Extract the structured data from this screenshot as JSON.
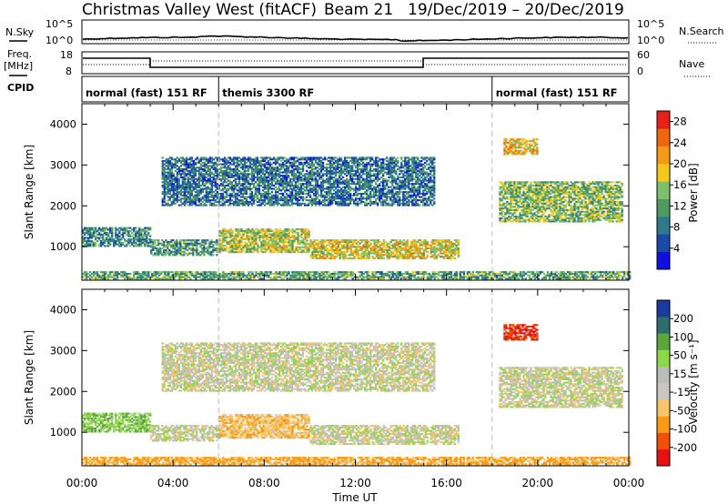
{
  "header": {
    "title": "Christmas Valley West (fitACF)",
    "beam": "Beam 21",
    "dates": "19/Dec/2019 – 20/Dec/2019"
  },
  "top_panels": {
    "nsky_label": "N.Sky",
    "nsky_ticks": [
      "10^5",
      "10^0"
    ],
    "nsearch_label": "N.Search",
    "nsearch_ticks": [
      "10^5",
      "10^0"
    ],
    "freq_label_1": "Freq.",
    "freq_label_2": "[MHz]",
    "freq_ticks": [
      "18",
      "8"
    ],
    "nave_label": "Nave",
    "nave_ticks": [
      "60",
      "0"
    ],
    "cpid_label": "CPID"
  },
  "cpid_segments": [
    {
      "label": "normal (fast) 151 RF",
      "start_h": 0,
      "end_h": 6
    },
    {
      "label": "themis 3300 RF",
      "start_h": 6,
      "end_h": 18
    },
    {
      "label": "normal (fast) 151 RF",
      "start_h": 18,
      "end_h": 24
    }
  ],
  "colors": {
    "power_scale": [
      "#1010e0",
      "#1a4aa8",
      "#2e7a8c",
      "#4f9a5e",
      "#7cc06c",
      "#f2c81a",
      "#f59a12",
      "#ee6a10",
      "#e8201a"
    ],
    "velocity_scale": [
      "#e81010",
      "#f05008",
      "#f89a14",
      "#f6c46a",
      "#c8c8c0",
      "#bcbcbc",
      "#8ed64a",
      "#5aa83c",
      "#2e6e6e",
      "#1c3aa0"
    ]
  },
  "chart_data": [
    {
      "type": "heatmap",
      "title": "Power",
      "ylabel": "Slant Range [km]",
      "xlabel": "Time UT",
      "x_ticks": [
        "00:00",
        "04:00",
        "08:00",
        "12:00",
        "16:00",
        "20:00",
        "00:00"
      ],
      "xlim_hours": [
        0,
        24
      ],
      "ylim": [
        180,
        4500
      ],
      "y_ticks": [
        1000,
        2000,
        3000,
        4000
      ],
      "colorbar": {
        "label": "Power [dB]",
        "ticks": [
          4,
          8,
          12,
          16,
          20,
          24,
          28
        ],
        "range": [
          0,
          30
        ]
      },
      "regions": [
        {
          "t0": 0,
          "t1": 3.0,
          "r0": 1000,
          "r1": 1480,
          "value": 10
        },
        {
          "t0": 3.0,
          "t1": 6.0,
          "r0": 780,
          "r1": 1180,
          "value": 11
        },
        {
          "t0": 6.0,
          "t1": 10.0,
          "r0": 850,
          "r1": 1450,
          "value": 16
        },
        {
          "t0": 10.0,
          "t1": 16.5,
          "r0": 700,
          "r1": 1150,
          "value": 18
        },
        {
          "t0": 18.5,
          "t1": 20.0,
          "r0": 3250,
          "r1": 3650,
          "value": 20
        },
        {
          "t0": 18.3,
          "t1": 23.7,
          "r0": 1600,
          "r1": 2600,
          "value": 14
        },
        {
          "t0": 3.5,
          "t1": 15.5,
          "r0": 2000,
          "r1": 3200,
          "value": 8
        },
        {
          "t0": 0,
          "t1": 24,
          "r0": 200,
          "r1": 400,
          "value": 12
        }
      ]
    },
    {
      "type": "heatmap",
      "title": "Velocity",
      "ylabel": "Slant Range [km]",
      "xlabel": "Time UT",
      "x_ticks": [
        "00:00",
        "04:00",
        "08:00",
        "12:00",
        "16:00",
        "20:00",
        "00:00"
      ],
      "xlim_hours": [
        0,
        24
      ],
      "ylim": [
        180,
        4500
      ],
      "y_ticks": [
        1000,
        2000,
        3000,
        4000
      ],
      "colorbar": {
        "label": "Velocity [m s⁻¹]",
        "ticks": [
          200,
          100,
          50,
          15,
          -15,
          -50,
          -100,
          -200
        ],
        "range": [
          -250,
          250
        ]
      },
      "regions": [
        {
          "t0": 0,
          "t1": 3.0,
          "r0": 1000,
          "r1": 1480,
          "value": 40
        },
        {
          "t0": 3.0,
          "t1": 6.0,
          "r0": 780,
          "r1": 1180,
          "value": 0
        },
        {
          "t0": 6.0,
          "t1": 10.0,
          "r0": 850,
          "r1": 1450,
          "value": -40
        },
        {
          "t0": 10.0,
          "t1": 16.5,
          "r0": 700,
          "r1": 1150,
          "value": 0
        },
        {
          "t0": 18.5,
          "t1": 20.0,
          "r0": 3250,
          "r1": 3650,
          "value": -200
        },
        {
          "t0": 18.3,
          "t1": 23.7,
          "r0": 1600,
          "r1": 2600,
          "value": 0
        },
        {
          "t0": 3.5,
          "t1": 15.5,
          "r0": 2000,
          "r1": 3200,
          "value": 0
        },
        {
          "t0": 0,
          "t1": 24,
          "r0": 200,
          "r1": 400,
          "value": -60
        }
      ]
    }
  ]
}
